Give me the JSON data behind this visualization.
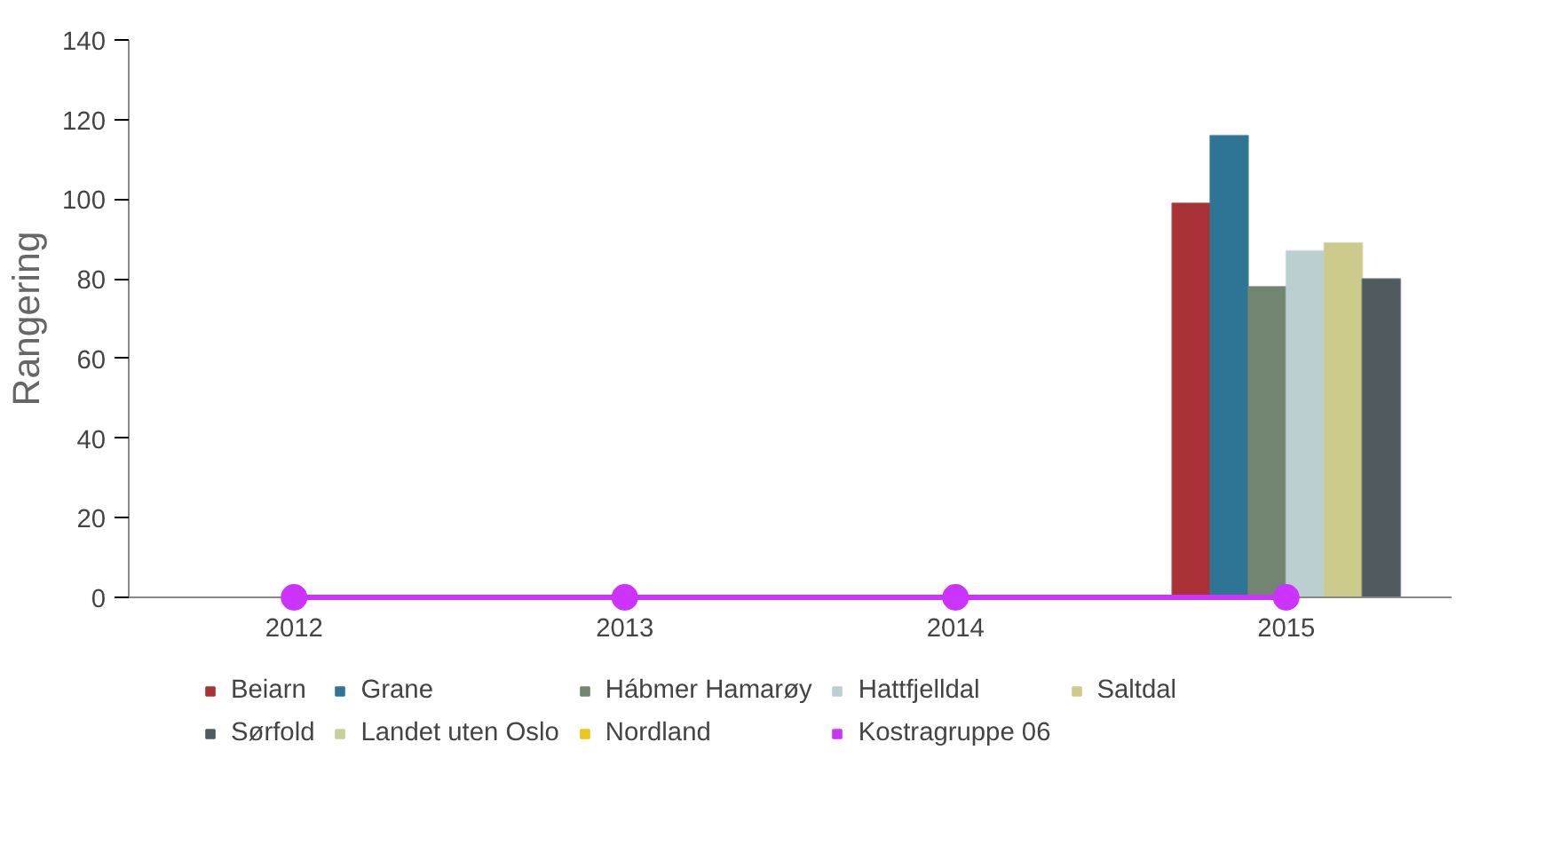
{
  "chart_data": {
    "type": "bar",
    "ylabel": "Rangering",
    "categories": [
      "2012",
      "2013",
      "2014",
      "2015"
    ],
    "ylim": [
      0,
      140
    ],
    "yticks": [
      0,
      20,
      40,
      60,
      80,
      100,
      120,
      140
    ],
    "grid": false,
    "legend": "bottom",
    "series": [
      {
        "name": "Beiarn",
        "color": "#a83236",
        "values": [
          null,
          null,
          null,
          99
        ]
      },
      {
        "name": "Grane",
        "color": "#2e7595",
        "values": [
          null,
          null,
          null,
          116
        ]
      },
      {
        "name": "Hábmer Hamarøy",
        "color": "#728570",
        "values": [
          null,
          null,
          null,
          78
        ]
      },
      {
        "name": "Hattfjelldal",
        "color": "#bccfd0",
        "values": [
          null,
          null,
          null,
          87
        ]
      },
      {
        "name": "Saltdal",
        "color": "#cdcb8c",
        "values": [
          null,
          null,
          null,
          89
        ]
      },
      {
        "name": "Sørfold",
        "color": "#4f5b5f",
        "values": [
          null,
          null,
          null,
          80
        ]
      },
      {
        "name": "Landet uten Oslo",
        "type": "line",
        "color": "#c9cf9b",
        "values": [
          null,
          null,
          null,
          null
        ]
      },
      {
        "name": "Nordland",
        "type": "line",
        "color": "#f0c419",
        "values": [
          null,
          null,
          null,
          null
        ]
      },
      {
        "name": "Kostragruppe 06",
        "type": "line",
        "color": "#cc33ff",
        "marker": "circle",
        "values": [
          0,
          0,
          0,
          0
        ]
      }
    ]
  }
}
